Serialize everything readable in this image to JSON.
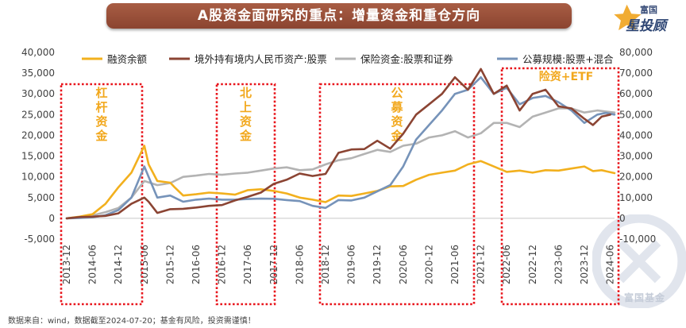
{
  "title": "A股资金面研究的重点：增量资金和重仓方向",
  "logo": {
    "top_text": "富国",
    "main_text": "星投顾"
  },
  "watermark_text": "富国基金",
  "footer": "数据来自：wind，数据截至2024-07-20；基金有风险，投资需谨慎！",
  "colors": {
    "margin": "#f2b01e",
    "northbound": "#8b4433",
    "insurance": "#b3b3b3",
    "fund": "#7693b9",
    "box": "#e8141b",
    "box_label": "#f2a81d",
    "title_bg": "#954b35"
  },
  "annotations": [
    {
      "name": "leverage",
      "text": "杠杆资金",
      "vertical": true,
      "range": [
        "2013-12",
        "2015-06"
      ]
    },
    {
      "name": "northbound",
      "text": "北上资金",
      "vertical": true,
      "range": [
        "2016-06",
        "2017-12"
      ]
    },
    {
      "name": "mutual-fund",
      "text": "公募资金",
      "vertical": true,
      "range": [
        "2018-12",
        "2021-06"
      ]
    },
    {
      "name": "insurance-etf",
      "text": "险资+ETF",
      "vertical": false,
      "range": [
        "2022-02",
        "2024-06"
      ]
    }
  ],
  "chart_data": {
    "type": "line",
    "title": "A股资金面研究的重点：增量资金和重仓方向",
    "xlabel": "",
    "left_axis": {
      "min": -5000,
      "max": 40000,
      "step": 5000
    },
    "right_axis": {
      "min": -10000,
      "max": 80000,
      "step": 10000
    },
    "x_start": "2013-12",
    "x_end": "2024-07",
    "x_ticks": [
      "2013-12",
      "2014-06",
      "2014-12",
      "2015-06",
      "2015-12",
      "2016-06",
      "2016-12",
      "2017-06",
      "2017-12",
      "2018-06",
      "2018-12",
      "2019-06",
      "2019-12",
      "2020-06",
      "2020-12",
      "2021-06",
      "2021-12",
      "2022-06",
      "2022-12",
      "2023-06",
      "2023-12",
      "2024-06"
    ],
    "series": [
      {
        "name": "融资余额",
        "key": "margin",
        "axis": "left",
        "points": [
          [
            "2013-12",
            0
          ],
          [
            "2014-03",
            400
          ],
          [
            "2014-06",
            1000
          ],
          [
            "2014-09",
            3500
          ],
          [
            "2014-12",
            7500
          ],
          [
            "2015-03",
            11000
          ],
          [
            "2015-06",
            17500
          ],
          [
            "2015-07",
            13000
          ],
          [
            "2015-09",
            9000
          ],
          [
            "2015-12",
            8600
          ],
          [
            "2016-01",
            7500
          ],
          [
            "2016-03",
            5500
          ],
          [
            "2016-06",
            5800
          ],
          [
            "2016-09",
            6200
          ],
          [
            "2016-12",
            6000
          ],
          [
            "2017-03",
            5700
          ],
          [
            "2017-06",
            6800
          ],
          [
            "2017-09",
            7000
          ],
          [
            "2017-12",
            6600
          ],
          [
            "2018-03",
            6000
          ],
          [
            "2018-06",
            5000
          ],
          [
            "2018-09",
            4500
          ],
          [
            "2018-12",
            3900
          ],
          [
            "2019-03",
            5500
          ],
          [
            "2019-06",
            5400
          ],
          [
            "2019-09",
            6000
          ],
          [
            "2019-12",
            6600
          ],
          [
            "2020-03",
            7700
          ],
          [
            "2020-06",
            7800
          ],
          [
            "2020-09",
            9300
          ],
          [
            "2020-12",
            10500
          ],
          [
            "2021-03",
            11000
          ],
          [
            "2021-06",
            11500
          ],
          [
            "2021-09",
            13000
          ],
          [
            "2021-12",
            13800
          ],
          [
            "2022-03",
            12500
          ],
          [
            "2022-06",
            11200
          ],
          [
            "2022-09",
            11500
          ],
          [
            "2022-12",
            11000
          ],
          [
            "2023-03",
            11600
          ],
          [
            "2023-06",
            11500
          ],
          [
            "2023-09",
            12000
          ],
          [
            "2023-12",
            12500
          ],
          [
            "2024-02",
            11400
          ],
          [
            "2024-04",
            11600
          ],
          [
            "2024-07",
            10900
          ]
        ]
      },
      {
        "name": "境外持有境内人民币资产:股票",
        "key": "northbound",
        "axis": "left",
        "points": [
          [
            "2013-12",
            0
          ],
          [
            "2014-03",
            300
          ],
          [
            "2014-06",
            400
          ],
          [
            "2014-09",
            600
          ],
          [
            "2014-12",
            1200
          ],
          [
            "2015-03",
            3500
          ],
          [
            "2015-06",
            5000
          ],
          [
            "2015-07",
            4000
          ],
          [
            "2015-09",
            1300
          ],
          [
            "2015-12",
            2200
          ],
          [
            "2016-03",
            2300
          ],
          [
            "2016-06",
            2600
          ],
          [
            "2016-09",
            3000
          ],
          [
            "2016-12",
            3200
          ],
          [
            "2017-03",
            4300
          ],
          [
            "2017-06",
            5200
          ],
          [
            "2017-09",
            6200
          ],
          [
            "2017-12",
            8300
          ],
          [
            "2018-03",
            9300
          ],
          [
            "2018-06",
            10800
          ],
          [
            "2018-09",
            10200
          ],
          [
            "2018-12",
            10700
          ],
          [
            "2019-03",
            15800
          ],
          [
            "2019-06",
            16600
          ],
          [
            "2019-09",
            16700
          ],
          [
            "2019-12",
            18700
          ],
          [
            "2020-03",
            16800
          ],
          [
            "2020-06",
            20400
          ],
          [
            "2020-09",
            25000
          ],
          [
            "2020-12",
            27500
          ],
          [
            "2021-03",
            30000
          ],
          [
            "2021-06",
            34000
          ],
          [
            "2021-09",
            31000
          ],
          [
            "2021-12",
            36000
          ],
          [
            "2022-03",
            30000
          ],
          [
            "2022-06",
            32000
          ],
          [
            "2022-09",
            26000
          ],
          [
            "2022-12",
            30000
          ],
          [
            "2023-03",
            31000
          ],
          [
            "2023-06",
            27000
          ],
          [
            "2023-09",
            26500
          ],
          [
            "2023-12",
            24000
          ],
          [
            "2024-02",
            22500
          ],
          [
            "2024-04",
            24500
          ],
          [
            "2024-06",
            25000
          ]
        ]
      },
      {
        "name": "保险资金:股票和证券",
        "key": "insurance",
        "axis": "left",
        "points": [
          [
            "2013-12",
            0
          ],
          [
            "2014-03",
            300
          ],
          [
            "2014-06",
            700
          ],
          [
            "2014-09",
            1500
          ],
          [
            "2014-12",
            2500
          ],
          [
            "2015-03",
            5000
          ],
          [
            "2015-06",
            9000
          ],
          [
            "2015-09",
            8000
          ],
          [
            "2015-12",
            8500
          ],
          [
            "2016-03",
            10000
          ],
          [
            "2016-06",
            10300
          ],
          [
            "2016-09",
            10700
          ],
          [
            "2016-12",
            10500
          ],
          [
            "2017-03",
            10800
          ],
          [
            "2017-06",
            11000
          ],
          [
            "2017-09",
            11500
          ],
          [
            "2017-12",
            12000
          ],
          [
            "2018-03",
            12300
          ],
          [
            "2018-06",
            11600
          ],
          [
            "2018-09",
            11800
          ],
          [
            "2018-12",
            13000
          ],
          [
            "2019-03",
            14000
          ],
          [
            "2019-06",
            14500
          ],
          [
            "2019-09",
            15500
          ],
          [
            "2019-12",
            16500
          ],
          [
            "2020-03",
            16000
          ],
          [
            "2020-06",
            17500
          ],
          [
            "2020-09",
            18000
          ],
          [
            "2020-12",
            19500
          ],
          [
            "2021-03",
            20000
          ],
          [
            "2021-06",
            21000
          ],
          [
            "2021-09",
            19500
          ],
          [
            "2021-12",
            20500
          ],
          [
            "2022-03",
            23000
          ],
          [
            "2022-06",
            23000
          ],
          [
            "2022-09",
            22000
          ],
          [
            "2022-12",
            24500
          ],
          [
            "2023-03",
            25500
          ],
          [
            "2023-06",
            26500
          ],
          [
            "2023-09",
            26500
          ],
          [
            "2023-12",
            25500
          ],
          [
            "2024-03",
            26000
          ],
          [
            "2024-07",
            25500
          ]
        ]
      },
      {
        "name": "公募规模:股票+混合",
        "key": "fund",
        "axis": "right",
        "points": [
          [
            "2013-12",
            0
          ],
          [
            "2014-03",
            200
          ],
          [
            "2014-06",
            500
          ],
          [
            "2014-09",
            1500
          ],
          [
            "2014-12",
            4000
          ],
          [
            "2015-03",
            10000
          ],
          [
            "2015-06",
            25000
          ],
          [
            "2015-07",
            20000
          ],
          [
            "2015-09",
            10000
          ],
          [
            "2015-12",
            11000
          ],
          [
            "2016-03",
            8000
          ],
          [
            "2016-06",
            9000
          ],
          [
            "2016-09",
            9500
          ],
          [
            "2016-12",
            9000
          ],
          [
            "2017-03",
            9000
          ],
          [
            "2017-06",
            9300
          ],
          [
            "2017-09",
            9500
          ],
          [
            "2017-12",
            9400
          ],
          [
            "2018-03",
            8800
          ],
          [
            "2018-06",
            8300
          ],
          [
            "2018-09",
            6000
          ],
          [
            "2018-12",
            5000
          ],
          [
            "2019-03",
            8800
          ],
          [
            "2019-06",
            8600
          ],
          [
            "2019-09",
            10000
          ],
          [
            "2019-12",
            13000
          ],
          [
            "2020-03",
            16000
          ],
          [
            "2020-06",
            25000
          ],
          [
            "2020-09",
            38000
          ],
          [
            "2020-12",
            45000
          ],
          [
            "2021-03",
            52000
          ],
          [
            "2021-06",
            60000
          ],
          [
            "2021-09",
            62000
          ],
          [
            "2021-12",
            68000
          ],
          [
            "2022-03",
            60000
          ],
          [
            "2022-06",
            63000
          ],
          [
            "2022-09",
            55000
          ],
          [
            "2022-12",
            58000
          ],
          [
            "2023-03",
            59000
          ],
          [
            "2023-06",
            56000
          ],
          [
            "2023-09",
            52000
          ],
          [
            "2023-12",
            46000
          ],
          [
            "2024-03",
            50000
          ],
          [
            "2024-05",
            50800
          ],
          [
            "2024-07",
            50000
          ]
        ]
      }
    ]
  }
}
